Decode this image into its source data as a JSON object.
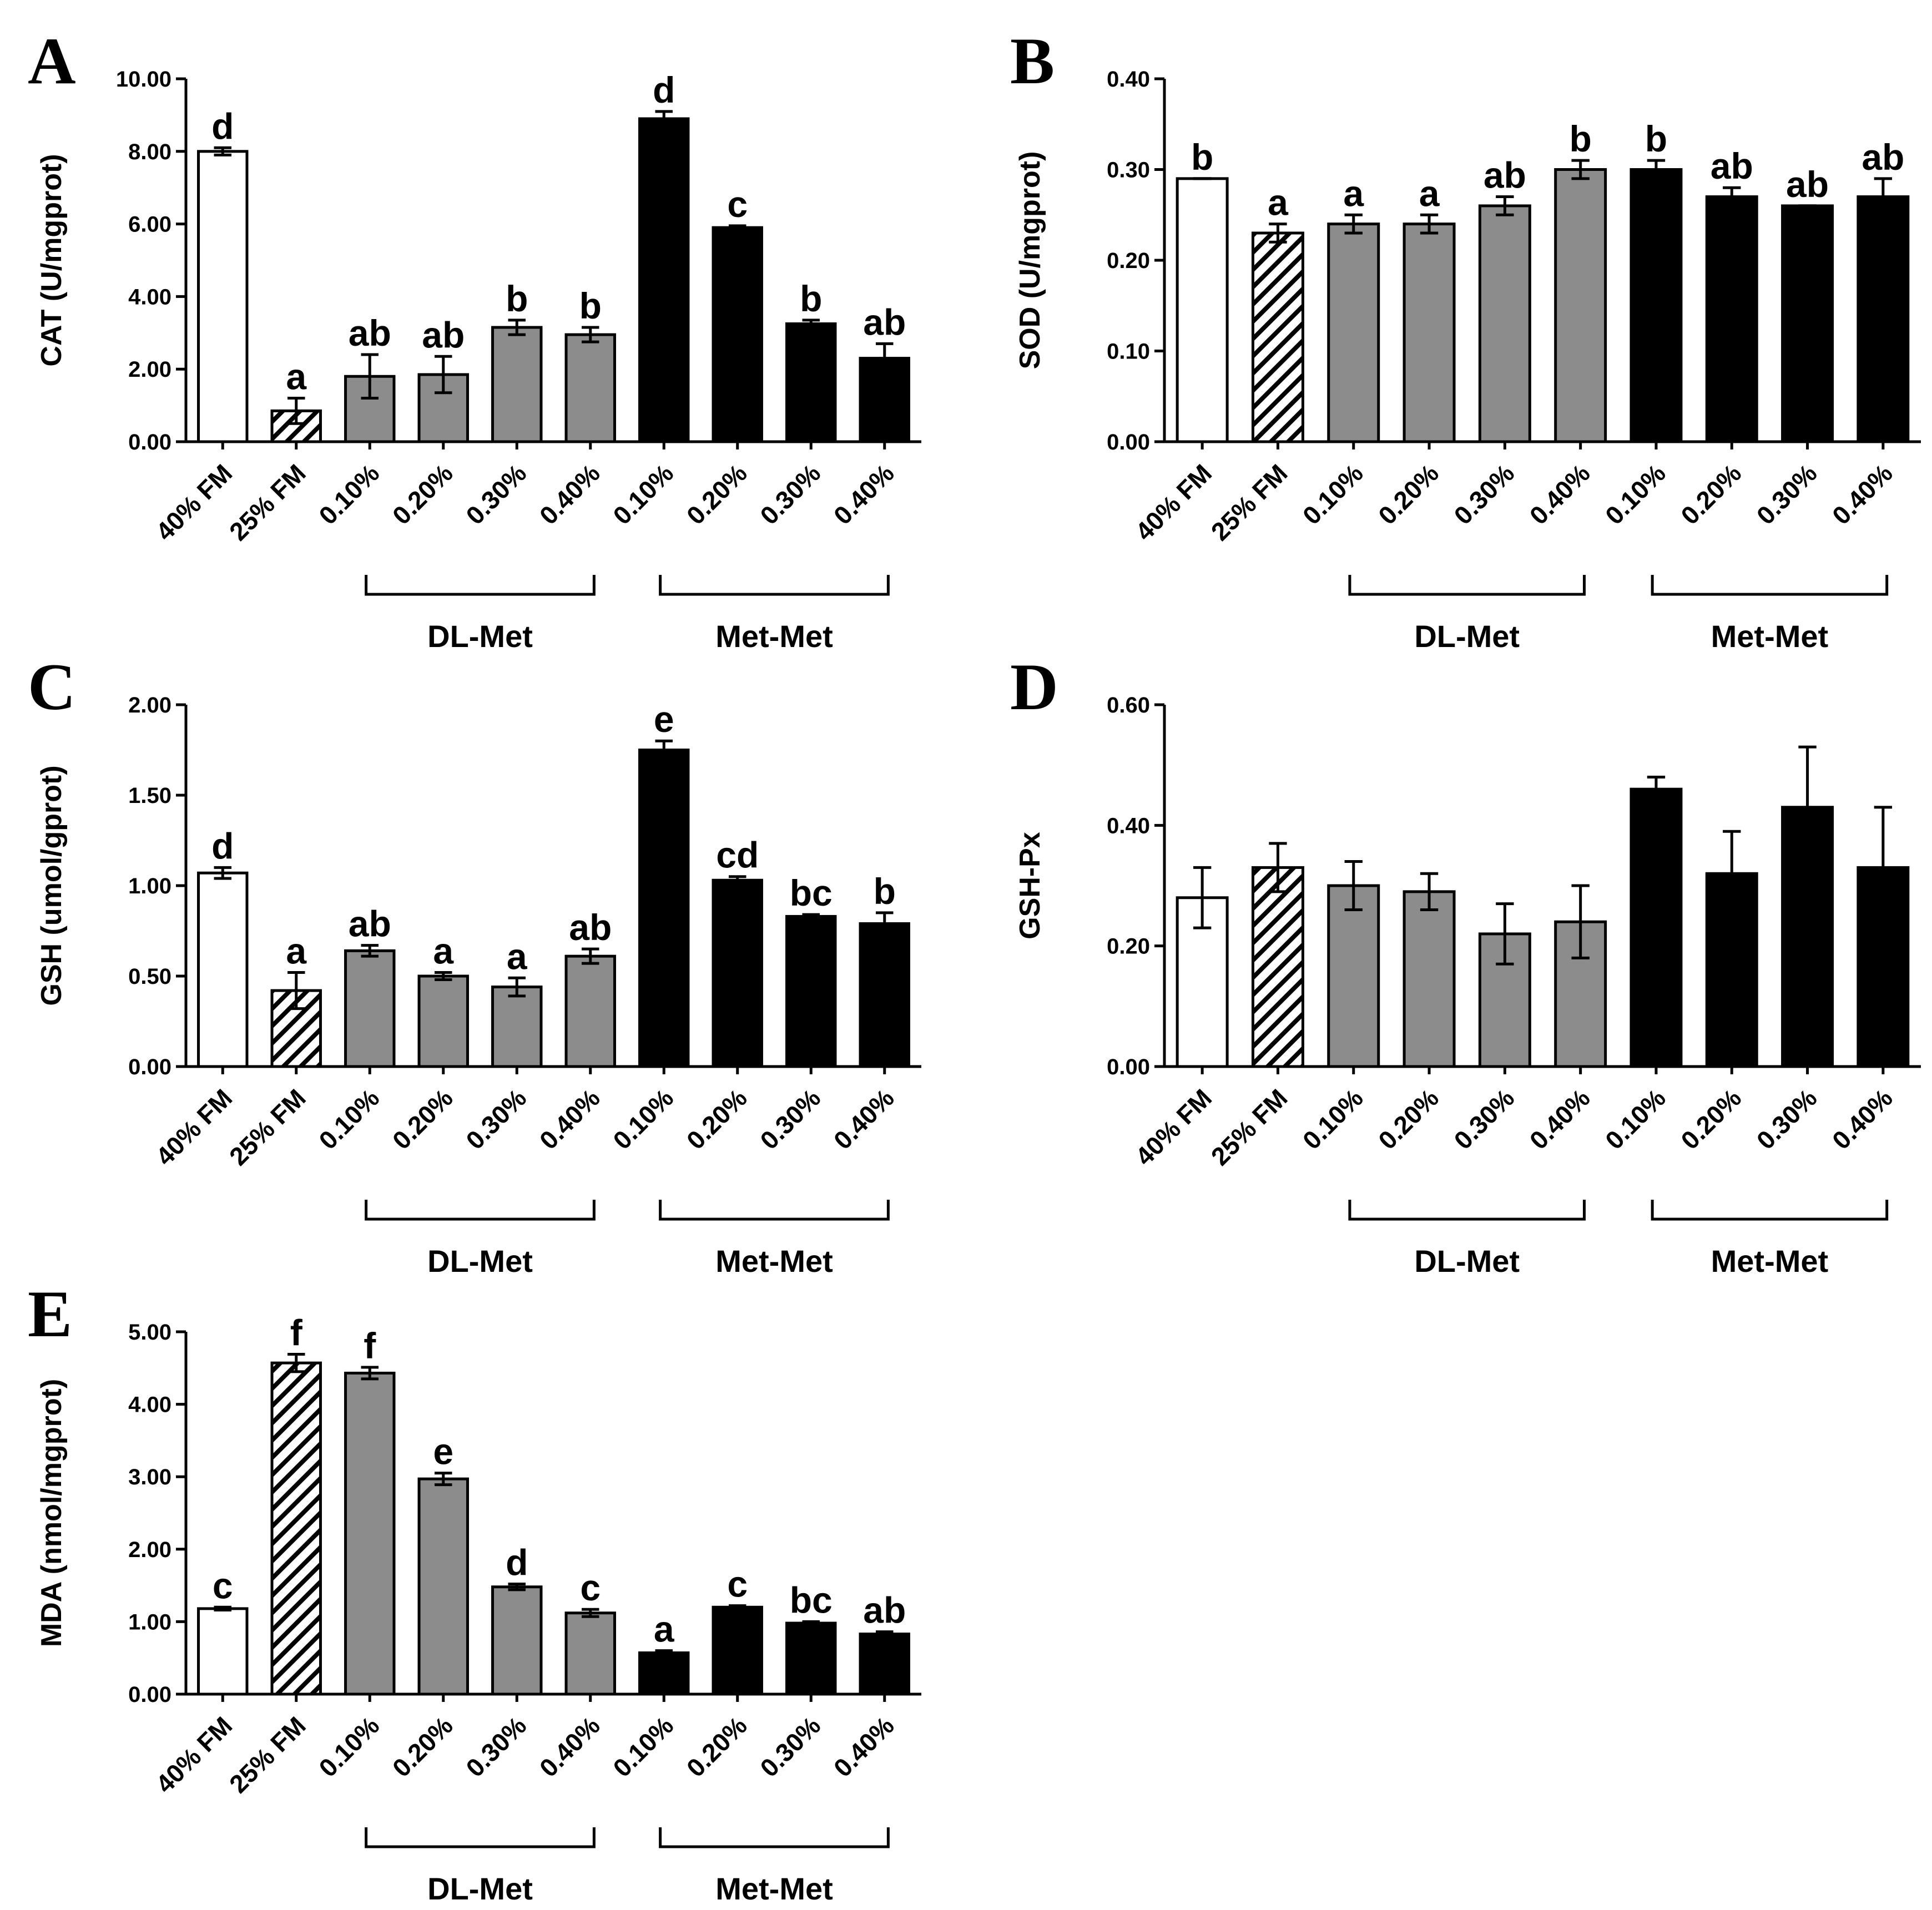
{
  "colors": {
    "fm40": "#ffffff",
    "fm25": "#ffffff",
    "dlmet": "#8c8c8c",
    "metmet": "#000000",
    "axis": "#000000"
  },
  "chart_data": [
    {
      "panel": "A",
      "type": "bar",
      "ylabel": "CAT (U/mgprot)",
      "ylim": [
        0,
        10
      ],
      "yticks": [
        "0.00",
        "2.00",
        "4.00",
        "6.00",
        "8.00",
        "10.00"
      ],
      "tick_values": [
        0,
        2,
        4,
        6,
        8,
        10
      ],
      "categories": [
        "40% FM",
        "25% FM",
        "0.10%",
        "0.20%",
        "0.30%",
        "0.40%",
        "0.10%",
        "0.20%",
        "0.30%",
        "0.40%"
      ],
      "values": [
        8.0,
        0.85,
        1.8,
        1.85,
        3.15,
        2.95,
        8.9,
        5.9,
        3.25,
        2.3
      ],
      "errors": [
        0.1,
        0.35,
        0.6,
        0.5,
        0.2,
        0.2,
        0.2,
        0.05,
        0.1,
        0.4
      ],
      "letters": [
        "d",
        "a",
        "ab",
        "ab",
        "b",
        "b",
        "d",
        "c",
        "b",
        "ab"
      ],
      "groups": [
        "DL-Met",
        "Met-Met"
      ]
    },
    {
      "panel": "B",
      "type": "bar",
      "ylabel": "SOD (U/mgprot)",
      "ylim": [
        0,
        0.4
      ],
      "yticks": [
        "0.00",
        "0.10",
        "0.20",
        "0.30",
        "0.40"
      ],
      "tick_values": [
        0,
        0.1,
        0.2,
        0.3,
        0.4
      ],
      "categories": [
        "40% FM",
        "25% FM",
        "0.10%",
        "0.20%",
        "0.30%",
        "0.40%",
        "0.10%",
        "0.20%",
        "0.30%",
        "0.40%"
      ],
      "values": [
        0.29,
        0.23,
        0.24,
        0.24,
        0.26,
        0.3,
        0.3,
        0.27,
        0.26,
        0.27
      ],
      "errors": [
        0.0,
        0.01,
        0.01,
        0.01,
        0.01,
        0.01,
        0.01,
        0.01,
        0.0,
        0.02
      ],
      "letters": [
        "b",
        "a",
        "a",
        "a",
        "ab",
        "b",
        "b",
        "ab",
        "ab",
        "ab"
      ],
      "groups": [
        "DL-Met",
        "Met-Met"
      ]
    },
    {
      "panel": "C",
      "type": "bar",
      "ylabel": "GSH (umol/gprot)",
      "ylim": [
        0,
        2
      ],
      "yticks": [
        "0.00",
        "0.50",
        "1.00",
        "1.50",
        "2.00"
      ],
      "tick_values": [
        0,
        0.5,
        1,
        1.5,
        2
      ],
      "categories": [
        "40% FM",
        "25% FM",
        "0.10%",
        "0.20%",
        "0.30%",
        "0.40%",
        "0.10%",
        "0.20%",
        "0.30%",
        "0.40%"
      ],
      "values": [
        1.07,
        0.42,
        0.64,
        0.5,
        0.44,
        0.61,
        1.75,
        1.03,
        0.83,
        0.79
      ],
      "errors": [
        0.03,
        0.1,
        0.03,
        0.02,
        0.05,
        0.04,
        0.05,
        0.02,
        0.01,
        0.06
      ],
      "letters": [
        "d",
        "a",
        "ab",
        "a",
        "a",
        "ab",
        "e",
        "cd",
        "bc",
        "b"
      ],
      "groups": [
        "DL-Met",
        "Met-Met"
      ]
    },
    {
      "panel": "D",
      "type": "bar",
      "ylabel": "GSH-Px",
      "ylim": [
        0,
        0.6
      ],
      "yticks": [
        "0.00",
        "0.20",
        "0.40",
        "0.60"
      ],
      "tick_values": [
        0,
        0.2,
        0.4,
        0.6
      ],
      "categories": [
        "40% FM",
        "25% FM",
        "0.10%",
        "0.20%",
        "0.30%",
        "0.40%",
        "0.10%",
        "0.20%",
        "0.30%",
        "0.40%"
      ],
      "values": [
        0.28,
        0.33,
        0.3,
        0.29,
        0.22,
        0.24,
        0.46,
        0.32,
        0.43,
        0.33
      ],
      "errors": [
        0.05,
        0.04,
        0.04,
        0.03,
        0.05,
        0.06,
        0.02,
        0.07,
        0.1,
        0.1
      ],
      "letters": [],
      "groups": [
        "DL-Met",
        "Met-Met"
      ]
    },
    {
      "panel": "E",
      "type": "bar",
      "ylabel": "MDA (nmol/mgprot)",
      "ylim": [
        0,
        5
      ],
      "yticks": [
        "0.00",
        "1.00",
        "2.00",
        "3.00",
        "4.00",
        "5.00"
      ],
      "tick_values": [
        0,
        1,
        2,
        3,
        4,
        5
      ],
      "categories": [
        "40% FM",
        "25% FM",
        "0.10%",
        "0.20%",
        "0.30%",
        "0.40%",
        "0.10%",
        "0.20%",
        "0.30%",
        "0.40%"
      ],
      "values": [
        1.18,
        4.57,
        4.43,
        2.97,
        1.48,
        1.12,
        0.57,
        1.2,
        0.98,
        0.83
      ],
      "errors": [
        0.02,
        0.12,
        0.08,
        0.08,
        0.04,
        0.05,
        0.03,
        0.02,
        0.02,
        0.03
      ],
      "letters": [
        "c",
        "f",
        "f",
        "e",
        "d",
        "c",
        "a",
        "c",
        "bc",
        "ab"
      ],
      "groups": [
        "DL-Met",
        "Met-Met"
      ]
    }
  ]
}
